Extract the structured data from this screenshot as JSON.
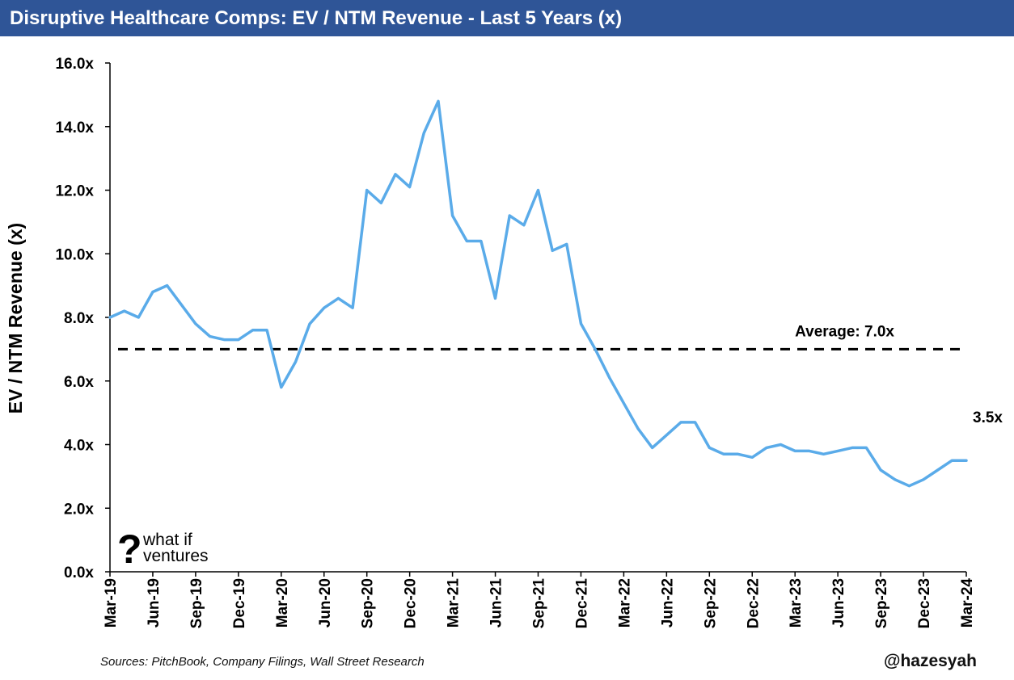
{
  "header": {
    "title": "Disruptive Healthcare Comps: EV / NTM Revenue - Last 5 Years (x)"
  },
  "footer": {
    "source": "Sources: PitchBook, Company Filings, Wall Street Research",
    "handle": "@hazesyah"
  },
  "logo": {
    "line1": "what if",
    "line2": "ventures",
    "icon": "question-mark-icon"
  },
  "chart_data": {
    "type": "line",
    "title": "Disruptive Healthcare Comps: EV / NTM Revenue - Last 5 Years (x)",
    "xlabel": "",
    "ylabel": "EV / NTM Revenue (x)",
    "ylim": [
      0,
      16
    ],
    "yticks": [
      0,
      2,
      4,
      6,
      8,
      10,
      12,
      14,
      16
    ],
    "ytick_labels": [
      "0.0x",
      "2.0x",
      "4.0x",
      "6.0x",
      "8.0x",
      "10.0x",
      "12.0x",
      "14.0x",
      "16.0x"
    ],
    "xtick_labels": [
      "Mar-19",
      "Jun-19",
      "Sep-19",
      "Dec-19",
      "Mar-20",
      "Jun-20",
      "Sep-20",
      "Dec-20",
      "Mar-21",
      "Jun-21",
      "Sep-21",
      "Dec-21",
      "Mar-22",
      "Jun-22",
      "Sep-22",
      "Dec-22",
      "Mar-23",
      "Jun-23",
      "Sep-23",
      "Dec-23",
      "Mar-24"
    ],
    "grid": false,
    "line_color": "#5aabe9",
    "series": [
      {
        "name": "",
        "x": [
          "2019-03",
          "2019-04",
          "2019-05",
          "2019-06",
          "2019-07",
          "2019-08",
          "2019-09",
          "2019-10",
          "2019-11",
          "2019-12",
          "2020-01",
          "2020-02",
          "2020-03",
          "2020-04",
          "2020-05",
          "2020-06",
          "2020-07",
          "2020-08",
          "2020-09",
          "2020-10",
          "2020-11",
          "2020-12",
          "2021-01",
          "2021-02",
          "2021-03",
          "2021-04",
          "2021-05",
          "2021-06",
          "2021-07",
          "2021-08",
          "2021-09",
          "2021-10",
          "2021-11",
          "2021-12",
          "2022-01",
          "2022-02",
          "2022-03",
          "2022-04",
          "2022-05",
          "2022-06",
          "2022-07",
          "2022-08",
          "2022-09",
          "2022-10",
          "2022-11",
          "2022-12",
          "2023-01",
          "2023-02",
          "2023-03",
          "2023-04",
          "2023-05",
          "2023-06",
          "2023-07",
          "2023-08",
          "2023-09",
          "2023-10",
          "2023-11",
          "2023-12",
          "2024-01",
          "2024-02",
          "2024-03"
        ],
        "values": [
          8.0,
          8.2,
          8.0,
          8.8,
          9.0,
          8.4,
          7.8,
          7.4,
          7.3,
          7.3,
          7.6,
          7.6,
          5.8,
          6.6,
          7.8,
          8.3,
          8.6,
          8.3,
          12.0,
          11.6,
          12.5,
          12.1,
          13.8,
          14.8,
          11.2,
          10.4,
          10.4,
          8.6,
          11.2,
          10.9,
          12.0,
          10.1,
          10.3,
          7.8,
          7.0,
          6.1,
          5.3,
          4.5,
          3.9,
          4.3,
          4.7,
          4.7,
          3.9,
          3.7,
          3.7,
          3.6,
          3.9,
          4.0,
          3.8,
          3.8,
          3.7,
          3.8,
          3.9,
          3.9,
          3.2,
          2.9,
          2.7,
          2.9,
          3.2,
          3.5,
          3.5
        ]
      }
    ],
    "average": {
      "value": 7.0,
      "label": "Average: 7.0x"
    },
    "end_label": "3.5x"
  }
}
